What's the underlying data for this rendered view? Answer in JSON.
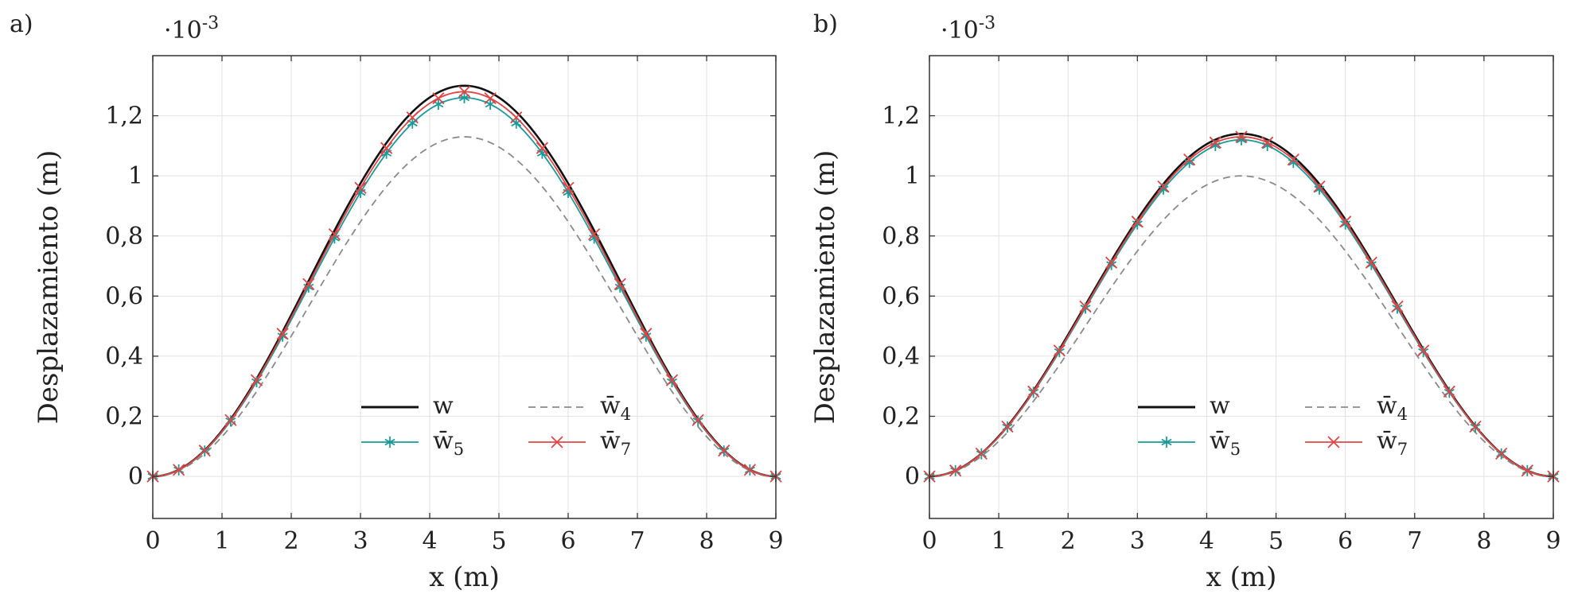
{
  "chart_data": [
    {
      "type": "line",
      "panel_label": "a)",
      "scale_note": "·10",
      "scale_exp": "-3",
      "xlabel": "x (m)",
      "ylabel": "Desplazamiento (m)",
      "xlim": [
        0,
        9
      ],
      "ylim": [
        -0.14,
        1.4
      ],
      "xticks": [
        0,
        1,
        2,
        3,
        4,
        5,
        6,
        7,
        8,
        9
      ],
      "xtick_labels": [
        "0",
        "1",
        "2",
        "3",
        "4",
        "5",
        "6",
        "7",
        "8",
        "9"
      ],
      "yticks": [
        0,
        0.2,
        0.4,
        0.6,
        0.8,
        1.0,
        1.2
      ],
      "ytick_labels": [
        "0",
        "0,2",
        "0,4",
        "0,6",
        "0,8",
        "1",
        "1,2"
      ],
      "grid": true,
      "legend_position": "lower-center",
      "series": [
        {
          "name": "w",
          "legend": {
            "base": "w",
            "sub": ""
          },
          "color": "#111111",
          "style": "solid",
          "marker": "none",
          "peak": 1.3
        },
        {
          "name": "w̄4",
          "legend": {
            "base": "w̄",
            "sub": "4"
          },
          "color": "#8a8a8a",
          "style": "dashed",
          "marker": "none",
          "peak": 1.13
        },
        {
          "name": "w̄5",
          "legend": {
            "base": "w̄",
            "sub": "5"
          },
          "color": "#1a9a9a",
          "style": "solid",
          "marker": "asterisk",
          "peak": 1.26
        },
        {
          "name": "w̄7",
          "legend": {
            "base": "w̄",
            "sub": "7"
          },
          "color": "#e04545",
          "style": "solid",
          "marker": "cross",
          "peak": 1.28
        }
      ]
    },
    {
      "type": "line",
      "panel_label": "b)",
      "scale_note": "·10",
      "scale_exp": "-3",
      "xlabel": "x (m)",
      "ylabel": "Desplazamiento (m)",
      "xlim": [
        0,
        9
      ],
      "ylim": [
        -0.14,
        1.4
      ],
      "xticks": [
        0,
        1,
        2,
        3,
        4,
        5,
        6,
        7,
        8,
        9
      ],
      "xtick_labels": [
        "0",
        "1",
        "2",
        "3",
        "4",
        "5",
        "6",
        "7",
        "8",
        "9"
      ],
      "yticks": [
        0,
        0.2,
        0.4,
        0.6,
        0.8,
        1.0,
        1.2
      ],
      "ytick_labels": [
        "0",
        "0,2",
        "0,4",
        "0,6",
        "0,8",
        "1",
        "1,2"
      ],
      "grid": true,
      "legend_position": "lower-center",
      "series": [
        {
          "name": "w",
          "legend": {
            "base": "w",
            "sub": ""
          },
          "color": "#111111",
          "style": "solid",
          "marker": "none",
          "peak": 1.14
        },
        {
          "name": "w̄4",
          "legend": {
            "base": "w̄",
            "sub": "4"
          },
          "color": "#8a8a8a",
          "style": "dashed",
          "marker": "none",
          "peak": 1.0
        },
        {
          "name": "w̄5",
          "legend": {
            "base": "w̄",
            "sub": "5"
          },
          "color": "#1a9a9a",
          "style": "solid",
          "marker": "asterisk",
          "peak": 1.12
        },
        {
          "name": "w̄7",
          "legend": {
            "base": "w̄",
            "sub": "7"
          },
          "color": "#e04545",
          "style": "solid",
          "marker": "cross",
          "peak": 1.13
        }
      ]
    }
  ]
}
